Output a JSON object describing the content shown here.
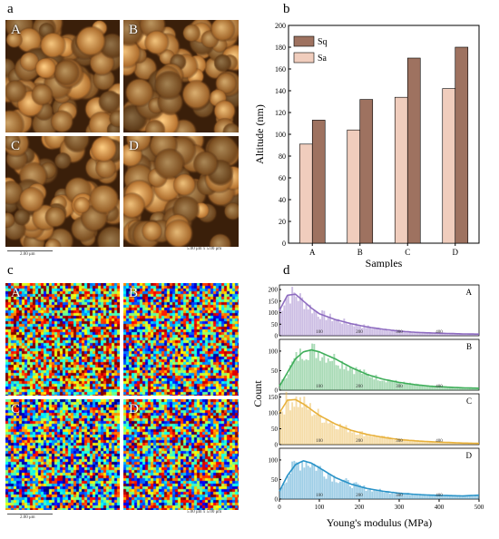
{
  "panels": {
    "a": {
      "label": "a",
      "tiles": [
        "A",
        "B",
        "C",
        "D"
      ],
      "scalebar": "2.00 μm",
      "scansize": "5.00 μm x 5.00 μm"
    },
    "c": {
      "label": "c",
      "tiles": [
        "A",
        "B",
        "C",
        "D"
      ],
      "scalebar": "2.00 μm",
      "scansize": "5.00 μm x 5.00 μm"
    },
    "b": {
      "label": "b"
    },
    "d": {
      "label": "d"
    }
  },
  "colors": {
    "sq": "#9e7260",
    "sa": "#f0cdbd"
  },
  "chart_data": [
    {
      "type": "bar",
      "categories": [
        "A",
        "B",
        "C",
        "D"
      ],
      "series": [
        {
          "name": "Sa",
          "values": [
            91,
            104,
            134,
            142
          ]
        },
        {
          "name": "Sq",
          "values": [
            113,
            132,
            170,
            180
          ]
        }
      ],
      "xlabel": "Samples",
      "ylabel": "Altitude (nm)",
      "ylim": [
        0,
        200
      ],
      "yticks": [
        0,
        20,
        40,
        60,
        80,
        100,
        120,
        140,
        160,
        180,
        200
      ],
      "legend": "top-left"
    },
    {
      "type": "bar",
      "xlabel": "Young's modulus (MPa)",
      "ylabel": "Count",
      "xlim": [
        0,
        500
      ],
      "xticks": [
        0,
        100,
        200,
        300,
        400,
        500
      ],
      "panels": [
        {
          "name": "A",
          "color": "#8e6cc0",
          "ylim": [
            0,
            220
          ],
          "yticks": [
            0,
            50,
            100,
            150,
            200
          ],
          "tickLabels": [
            "100",
            "200",
            "300",
            "400"
          ],
          "curve_x": [
            0,
            20,
            40,
            60,
            80,
            100,
            140,
            180,
            220,
            260,
            300,
            340,
            380,
            420,
            460,
            500
          ],
          "curve_y": [
            110,
            175,
            180,
            150,
            120,
            95,
            70,
            52,
            38,
            28,
            20,
            15,
            12,
            10,
            8,
            7
          ]
        },
        {
          "name": "B",
          "color": "#3fae5a",
          "ylim": [
            0,
            130
          ],
          "yticks": [
            0,
            50,
            100
          ],
          "tickLabels": [
            "100",
            "200",
            "300",
            "400"
          ],
          "curve_x": [
            0,
            20,
            40,
            60,
            80,
            100,
            140,
            180,
            220,
            260,
            300,
            340,
            380,
            420,
            460,
            500
          ],
          "curve_y": [
            10,
            45,
            80,
            98,
            103,
            98,
            80,
            58,
            40,
            28,
            20,
            14,
            10,
            8,
            6,
            5
          ]
        },
        {
          "name": "C",
          "color": "#e8b13c",
          "ylim": [
            0,
            160
          ],
          "yticks": [
            0,
            50,
            100,
            150
          ],
          "tickLabels": [
            "100",
            "200",
            "300",
            "400"
          ],
          "curve_x": [
            0,
            20,
            40,
            60,
            80,
            100,
            140,
            180,
            220,
            260,
            300,
            340,
            380,
            420,
            460,
            500
          ],
          "curve_y": [
            100,
            140,
            142,
            128,
            110,
            92,
            65,
            45,
            32,
            23,
            16,
            12,
            9,
            7,
            5,
            4
          ]
        },
        {
          "name": "D",
          "color": "#2a93c8",
          "ylim": [
            0,
            130
          ],
          "yticks": [
            0,
            50,
            100
          ],
          "tickLabels": [
            "100",
            "200",
            "300",
            "400"
          ],
          "curve_x": [
            0,
            20,
            40,
            60,
            80,
            100,
            140,
            180,
            220,
            260,
            300,
            340,
            380,
            420,
            460,
            500
          ],
          "curve_y": [
            20,
            60,
            88,
            98,
            92,
            80,
            55,
            38,
            27,
            20,
            15,
            12,
            10,
            9,
            8,
            10
          ]
        }
      ]
    }
  ]
}
